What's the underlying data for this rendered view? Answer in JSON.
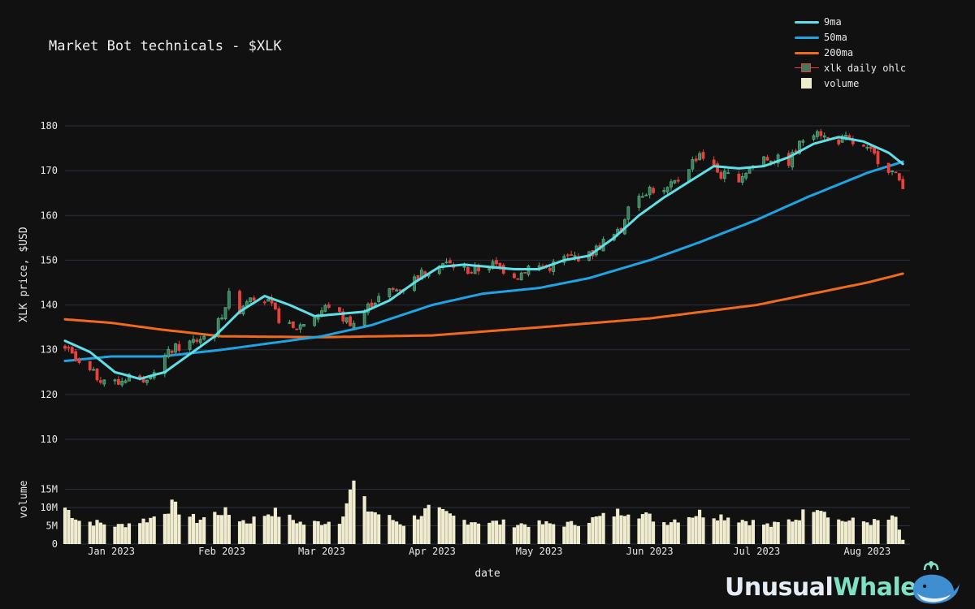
{
  "title": "Market Bot technicals - $XLK",
  "legend": [
    {
      "label": "9ma",
      "color": "#5ee0e8",
      "kind": "line"
    },
    {
      "label": "50ma",
      "color": "#1fa3e3",
      "kind": "line"
    },
    {
      "label": "200ma",
      "color": "#f06a1e",
      "kind": "line"
    },
    {
      "label": "xlk daily ohlc",
      "kind": "candle"
    },
    {
      "label": "volume",
      "color": "#f0ecd0",
      "kind": "box"
    }
  ],
  "logo": {
    "part1": "Unusual",
    "part2": "Whales"
  },
  "colors": {
    "up": "#3d7a5e",
    "down": "#e8413c",
    "grid": "#2b3040",
    "background": "#111111",
    "volume": "#f0ecd0"
  },
  "chart_data": {
    "type": "candlestick",
    "title": "Market Bot technicals - $XLK",
    "xlabel": "date",
    "ylabel": "XLK price, $USD",
    "volume_ylabel": "volume",
    "x_range": [
      "2022-12-19",
      "2023-08-13"
    ],
    "price_range": [
      110,
      180
    ],
    "price_ticks": [
      110,
      120,
      130,
      140,
      150,
      160,
      170,
      180
    ],
    "volume_range": [
      0,
      20000000
    ],
    "volume_ticks": [
      0,
      5000000,
      10000000,
      15000000
    ],
    "volume_tick_labels": [
      "0",
      "5M",
      "10M",
      "15M"
    ],
    "x_ticks": [
      "2023-01-01",
      "2023-02-01",
      "2023-03-01",
      "2023-04-01",
      "2023-05-01",
      "2023-06-01",
      "2023-07-01",
      "2023-08-01"
    ],
    "x_tick_labels": [
      "Jan 2023",
      "Feb 2023",
      "Mar 2023",
      "Apr 2023",
      "May 2023",
      "Jun 2023",
      "Jul 2023",
      "Aug 2023"
    ],
    "grid": true,
    "legend_position": "top-right",
    "ohlc_keyframes": [
      [
        "2022-12-19",
        130.5
      ],
      [
        "2022-12-23",
        126.5
      ],
      [
        "2022-12-28",
        124.0
      ],
      [
        "2023-01-03",
        122.5
      ],
      [
        "2023-01-06",
        124.5
      ],
      [
        "2023-01-09",
        123.0
      ],
      [
        "2023-01-13",
        125.5
      ],
      [
        "2023-01-18",
        130.0
      ],
      [
        "2023-01-23",
        131.5
      ],
      [
        "2023-01-30",
        134.0
      ],
      [
        "2023-02-03",
        142.0
      ],
      [
        "2023-02-06",
        139.0
      ],
      [
        "2023-02-09",
        142.5
      ],
      [
        "2023-02-14",
        140.5
      ],
      [
        "2023-02-17",
        137.0
      ],
      [
        "2023-02-21",
        134.5
      ],
      [
        "2023-02-28",
        138.0
      ],
      [
        "2023-03-03",
        140.0
      ],
      [
        "2023-03-07",
        137.0
      ],
      [
        "2023-03-10",
        136.0
      ],
      [
        "2023-03-15",
        140.5
      ],
      [
        "2023-03-20",
        143.0
      ],
      [
        "2023-03-24",
        144.0
      ],
      [
        "2023-03-29",
        147.0
      ],
      [
        "2023-04-03",
        149.5
      ],
      [
        "2023-04-06",
        149.0
      ],
      [
        "2023-04-12",
        147.5
      ],
      [
        "2023-04-18",
        149.0
      ],
      [
        "2023-04-25",
        146.5
      ],
      [
        "2023-04-28",
        148.5
      ],
      [
        "2023-05-04",
        148.5
      ],
      [
        "2023-05-08",
        150.5
      ],
      [
        "2023-05-15",
        151.0
      ],
      [
        "2023-05-19",
        154.0
      ],
      [
        "2023-05-24",
        156.5
      ],
      [
        "2023-05-26",
        163.0
      ],
      [
        "2023-06-01",
        166.0
      ],
      [
        "2023-06-05",
        165.0
      ],
      [
        "2023-06-09",
        168.0
      ],
      [
        "2023-06-15",
        174.0
      ],
      [
        "2023-06-21",
        169.0
      ],
      [
        "2023-06-26",
        168.5
      ],
      [
        "2023-07-03",
        173.0
      ],
      [
        "2023-07-10",
        172.0
      ],
      [
        "2023-07-14",
        177.0
      ],
      [
        "2023-07-18",
        179.5
      ],
      [
        "2023-07-21",
        176.5
      ],
      [
        "2023-07-26",
        177.0
      ],
      [
        "2023-08-02",
        174.0
      ],
      [
        "2023-08-07",
        170.5
      ],
      [
        "2023-08-11",
        167.0
      ]
    ],
    "ma9": [
      [
        "2022-12-19",
        132.0
      ],
      [
        "2022-12-26",
        129.5
      ],
      [
        "2023-01-02",
        125.0
      ],
      [
        "2023-01-09",
        123.5
      ],
      [
        "2023-01-16",
        125.0
      ],
      [
        "2023-01-23",
        129.0
      ],
      [
        "2023-01-30",
        133.0
      ],
      [
        "2023-02-06",
        138.5
      ],
      [
        "2023-02-13",
        142.0
      ],
      [
        "2023-02-20",
        140.0
      ],
      [
        "2023-02-27",
        137.5
      ],
      [
        "2023-03-06",
        138.0
      ],
      [
        "2023-03-13",
        138.5
      ],
      [
        "2023-03-20",
        141.0
      ],
      [
        "2023-03-27",
        145.0
      ],
      [
        "2023-04-03",
        148.5
      ],
      [
        "2023-04-10",
        149.0
      ],
      [
        "2023-04-17",
        148.5
      ],
      [
        "2023-04-24",
        148.0
      ],
      [
        "2023-05-01",
        148.0
      ],
      [
        "2023-05-08",
        150.0
      ],
      [
        "2023-05-15",
        151.0
      ],
      [
        "2023-05-22",
        155.0
      ],
      [
        "2023-05-29",
        160.0
      ],
      [
        "2023-06-05",
        164.0
      ],
      [
        "2023-06-12",
        167.5
      ],
      [
        "2023-06-19",
        171.0
      ],
      [
        "2023-06-26",
        170.5
      ],
      [
        "2023-07-03",
        171.0
      ],
      [
        "2023-07-10",
        173.0
      ],
      [
        "2023-07-17",
        176.0
      ],
      [
        "2023-07-24",
        177.5
      ],
      [
        "2023-07-31",
        176.5
      ],
      [
        "2023-08-07",
        174.0
      ],
      [
        "2023-08-11",
        171.5
      ]
    ],
    "ma50": [
      [
        "2022-12-19",
        127.5
      ],
      [
        "2023-01-01",
        128.5
      ],
      [
        "2023-01-15",
        128.5
      ],
      [
        "2023-02-01",
        130.0
      ],
      [
        "2023-02-15",
        131.5
      ],
      [
        "2023-03-01",
        133.0
      ],
      [
        "2023-03-15",
        135.5
      ],
      [
        "2023-04-01",
        140.0
      ],
      [
        "2023-04-15",
        142.5
      ],
      [
        "2023-05-01",
        143.8
      ],
      [
        "2023-05-15",
        146.0
      ],
      [
        "2023-06-01",
        150.0
      ],
      [
        "2023-06-15",
        154.0
      ],
      [
        "2023-07-01",
        159.0
      ],
      [
        "2023-07-15",
        164.0
      ],
      [
        "2023-08-01",
        169.5
      ],
      [
        "2023-08-11",
        172.0
      ]
    ],
    "ma200": [
      [
        "2022-12-19",
        136.8
      ],
      [
        "2023-01-01",
        136.0
      ],
      [
        "2023-01-15",
        134.5
      ],
      [
        "2023-02-01",
        133.0
      ],
      [
        "2023-03-01",
        132.8
      ],
      [
        "2023-04-01",
        133.2
      ],
      [
        "2023-05-01",
        135.0
      ],
      [
        "2023-06-01",
        137.0
      ],
      [
        "2023-07-01",
        140.0
      ],
      [
        "2023-08-01",
        145.0
      ],
      [
        "2023-08-11",
        147.0
      ]
    ],
    "volume_keyframes_millions": [
      [
        "2022-12-19",
        10.0
      ],
      [
        "2022-12-23",
        6.5
      ],
      [
        "2023-01-03",
        5.0
      ],
      [
        "2023-01-12",
        7.0
      ],
      [
        "2023-01-18",
        10.5
      ],
      [
        "2023-01-25",
        6.5
      ],
      [
        "2023-02-01",
        9.0
      ],
      [
        "2023-02-08",
        6.0
      ],
      [
        "2023-02-15",
        9.0
      ],
      [
        "2023-02-24",
        5.5
      ],
      [
        "2023-03-06",
        6.5
      ],
      [
        "2023-03-10",
        16.5
      ],
      [
        "2023-03-14",
        9.5
      ],
      [
        "2023-03-24",
        5.5
      ],
      [
        "2023-03-31",
        9.5
      ],
      [
        "2023-04-10",
        6.5
      ],
      [
        "2023-04-25",
        5.5
      ],
      [
        "2023-05-10",
        5.5
      ],
      [
        "2023-05-19",
        7.5
      ],
      [
        "2023-05-26",
        9.5
      ],
      [
        "2023-06-05",
        6.0
      ],
      [
        "2023-06-15",
        8.5
      ],
      [
        "2023-06-23",
        7.5
      ],
      [
        "2023-07-05",
        5.0
      ],
      [
        "2023-07-12",
        7.0
      ],
      [
        "2023-07-18",
        11.0
      ],
      [
        "2023-07-24",
        6.5
      ],
      [
        "2023-08-03",
        6.0
      ],
      [
        "2023-08-09",
        7.0
      ],
      [
        "2023-08-11",
        1.0
      ]
    ]
  }
}
